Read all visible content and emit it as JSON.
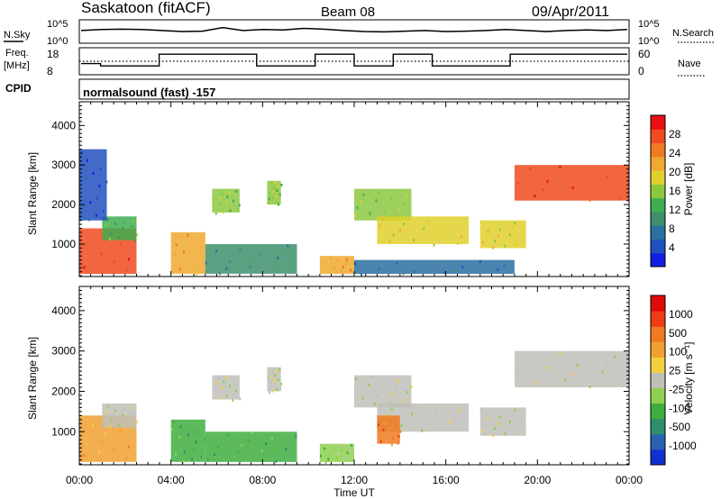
{
  "header": {
    "station": "Saskatoon (fitACF)",
    "beam": "Beam 08",
    "date": "09/Apr/2011"
  },
  "noise_panel": {
    "left_label": "N.Sky",
    "left_ticks": [
      "10^5",
      "10^0"
    ],
    "right_ticks": [
      "10^5",
      "10^0"
    ],
    "right_label": "N.Search",
    "sky_level": [
      0.55,
      0.6,
      0.62,
      0.6,
      0.55,
      0.5,
      0.52,
      0.7,
      0.55,
      0.6,
      0.58,
      0.66,
      0.62,
      0.55,
      0.5,
      0.48,
      0.52,
      0.55,
      0.5,
      0.52,
      0.55,
      0.6,
      0.55,
      0.5,
      0.55,
      0.58,
      0.55,
      0.6
    ]
  },
  "freq_panel": {
    "left_label_1": "Freq.",
    "left_label_2": "[MHz]",
    "left_ticks": [
      "18",
      "8"
    ],
    "right_ticks": [
      "60",
      "0"
    ],
    "right_label": "Nave",
    "freq_mhz": [
      12.0,
      11.0,
      11.0,
      11.0,
      16.0,
      16.0,
      16.0,
      16.0,
      16.0,
      11.0,
      11.0,
      11.0,
      16.0,
      16.0,
      11.0,
      11.0,
      16.0,
      16.0,
      11.0,
      11.0,
      11.0,
      11.0,
      16.0,
      16.0,
      16.0,
      16.0,
      16.0,
      16.0
    ],
    "freq_ref_mhz": 13
  },
  "cpid": {
    "label": "CPID",
    "program": "normalsound (fast) -157"
  },
  "chart_data": [
    {
      "type": "heatmap",
      "title": "",
      "xlabel": "Time UT",
      "ylabel": "Slant Range [km]",
      "x_ticks": [
        "00:00",
        "04:00",
        "08:00",
        "12:00",
        "16:00",
        "20:00",
        "00:00"
      ],
      "xlim_hours": [
        0,
        24
      ],
      "y_ticks": [
        "1000",
        "2000",
        "3000",
        "4000"
      ],
      "ylim_km": [
        180,
        4600
      ],
      "colorbar": {
        "label": "Power [dB]",
        "ticks": [
          "4",
          "8",
          "12",
          "16",
          "20",
          "24",
          "28"
        ],
        "colors": [
          "#1020e0",
          "#2050c0",
          "#2b6fa0",
          "#3f8f6e",
          "#3fae50",
          "#8cc83f",
          "#e0d02c",
          "#f0a830",
          "#f07a20",
          "#ef4a20",
          "#e81010"
        ]
      },
      "echo_regions": [
        {
          "t": [
            0.0,
            2.5
          ],
          "r": [
            250,
            1400
          ],
          "level": 9
        },
        {
          "t": [
            1.0,
            2.5
          ],
          "r": [
            1100,
            1700
          ],
          "level": 4
        },
        {
          "t": [
            0.0,
            1.2
          ],
          "r": [
            1600,
            3400
          ],
          "level": 1
        },
        {
          "t": [
            4.0,
            5.5
          ],
          "r": [
            250,
            1300
          ],
          "level": 7
        },
        {
          "t": [
            5.8,
            7.0
          ],
          "r": [
            1800,
            2400
          ],
          "level": 5
        },
        {
          "t": [
            8.2,
            8.8
          ],
          "r": [
            2000,
            2600
          ],
          "level": 5
        },
        {
          "t": [
            5.5,
            9.5
          ],
          "r": [
            250,
            1000
          ],
          "level": 3
        },
        {
          "t": [
            10.5,
            12.0
          ],
          "r": [
            250,
            700
          ],
          "level": 7
        },
        {
          "t": [
            12.0,
            14.5
          ],
          "r": [
            1600,
            2400
          ],
          "level": 5
        },
        {
          "t": [
            13.0,
            17.0
          ],
          "r": [
            1000,
            1700
          ],
          "level": 6
        },
        {
          "t": [
            17.5,
            19.5
          ],
          "r": [
            900,
            1600
          ],
          "level": 6
        },
        {
          "t": [
            19.0,
            24.0
          ],
          "r": [
            2100,
            3000
          ],
          "level": 9
        },
        {
          "t": [
            12.0,
            19.0
          ],
          "r": [
            250,
            600
          ],
          "level": 2
        }
      ]
    },
    {
      "type": "heatmap",
      "title": "",
      "xlabel": "Time UT",
      "ylabel": "Slant Range [km]",
      "x_ticks": [
        "00:00",
        "04:00",
        "08:00",
        "12:00",
        "16:00",
        "20:00",
        "00:00"
      ],
      "xlim_hours": [
        0,
        24
      ],
      "y_ticks": [
        "1000",
        "2000",
        "3000",
        "4000"
      ],
      "ylim_km": [
        180,
        4600
      ],
      "colorbar": {
        "label": "Velocity [m s⁻¹]",
        "ticks": [
          "1000",
          "500",
          "100",
          "25",
          "-25",
          "-100",
          "-500",
          "-1000"
        ],
        "colors": [
          "#1030d0",
          "#2a60b0",
          "#2f8f6a",
          "#3fae3f",
          "#8ed04f",
          "#c0c0b8",
          "#f4d040",
          "#f0a030",
          "#f07a20",
          "#ee3c14",
          "#e00a0a"
        ]
      },
      "echo_regions": [
        {
          "t": [
            0.0,
            2.5
          ],
          "r": [
            250,
            1400
          ],
          "level": 7
        },
        {
          "t": [
            1.0,
            2.5
          ],
          "r": [
            1100,
            1700
          ],
          "level": 5
        },
        {
          "t": [
            4.0,
            5.5
          ],
          "r": [
            250,
            1300
          ],
          "level": 3
        },
        {
          "t": [
            5.8,
            7.0
          ],
          "r": [
            1800,
            2400
          ],
          "level": 5
        },
        {
          "t": [
            8.2,
            8.8
          ],
          "r": [
            2000,
            2600
          ],
          "level": 5
        },
        {
          "t": [
            5.5,
            9.5
          ],
          "r": [
            250,
            1000
          ],
          "level": 3
        },
        {
          "t": [
            10.5,
            12.0
          ],
          "r": [
            250,
            700
          ],
          "level": 4
        },
        {
          "t": [
            12.0,
            14.5
          ],
          "r": [
            1600,
            2400
          ],
          "level": 5
        },
        {
          "t": [
            13.0,
            17.0
          ],
          "r": [
            1000,
            1700
          ],
          "level": 5
        },
        {
          "t": [
            13.0,
            14.0
          ],
          "r": [
            700,
            1400
          ],
          "level": 8
        },
        {
          "t": [
            17.5,
            19.5
          ],
          "r": [
            900,
            1600
          ],
          "level": 5
        },
        {
          "t": [
            19.0,
            24.0
          ],
          "r": [
            2100,
            3000
          ],
          "level": 5
        }
      ]
    }
  ]
}
